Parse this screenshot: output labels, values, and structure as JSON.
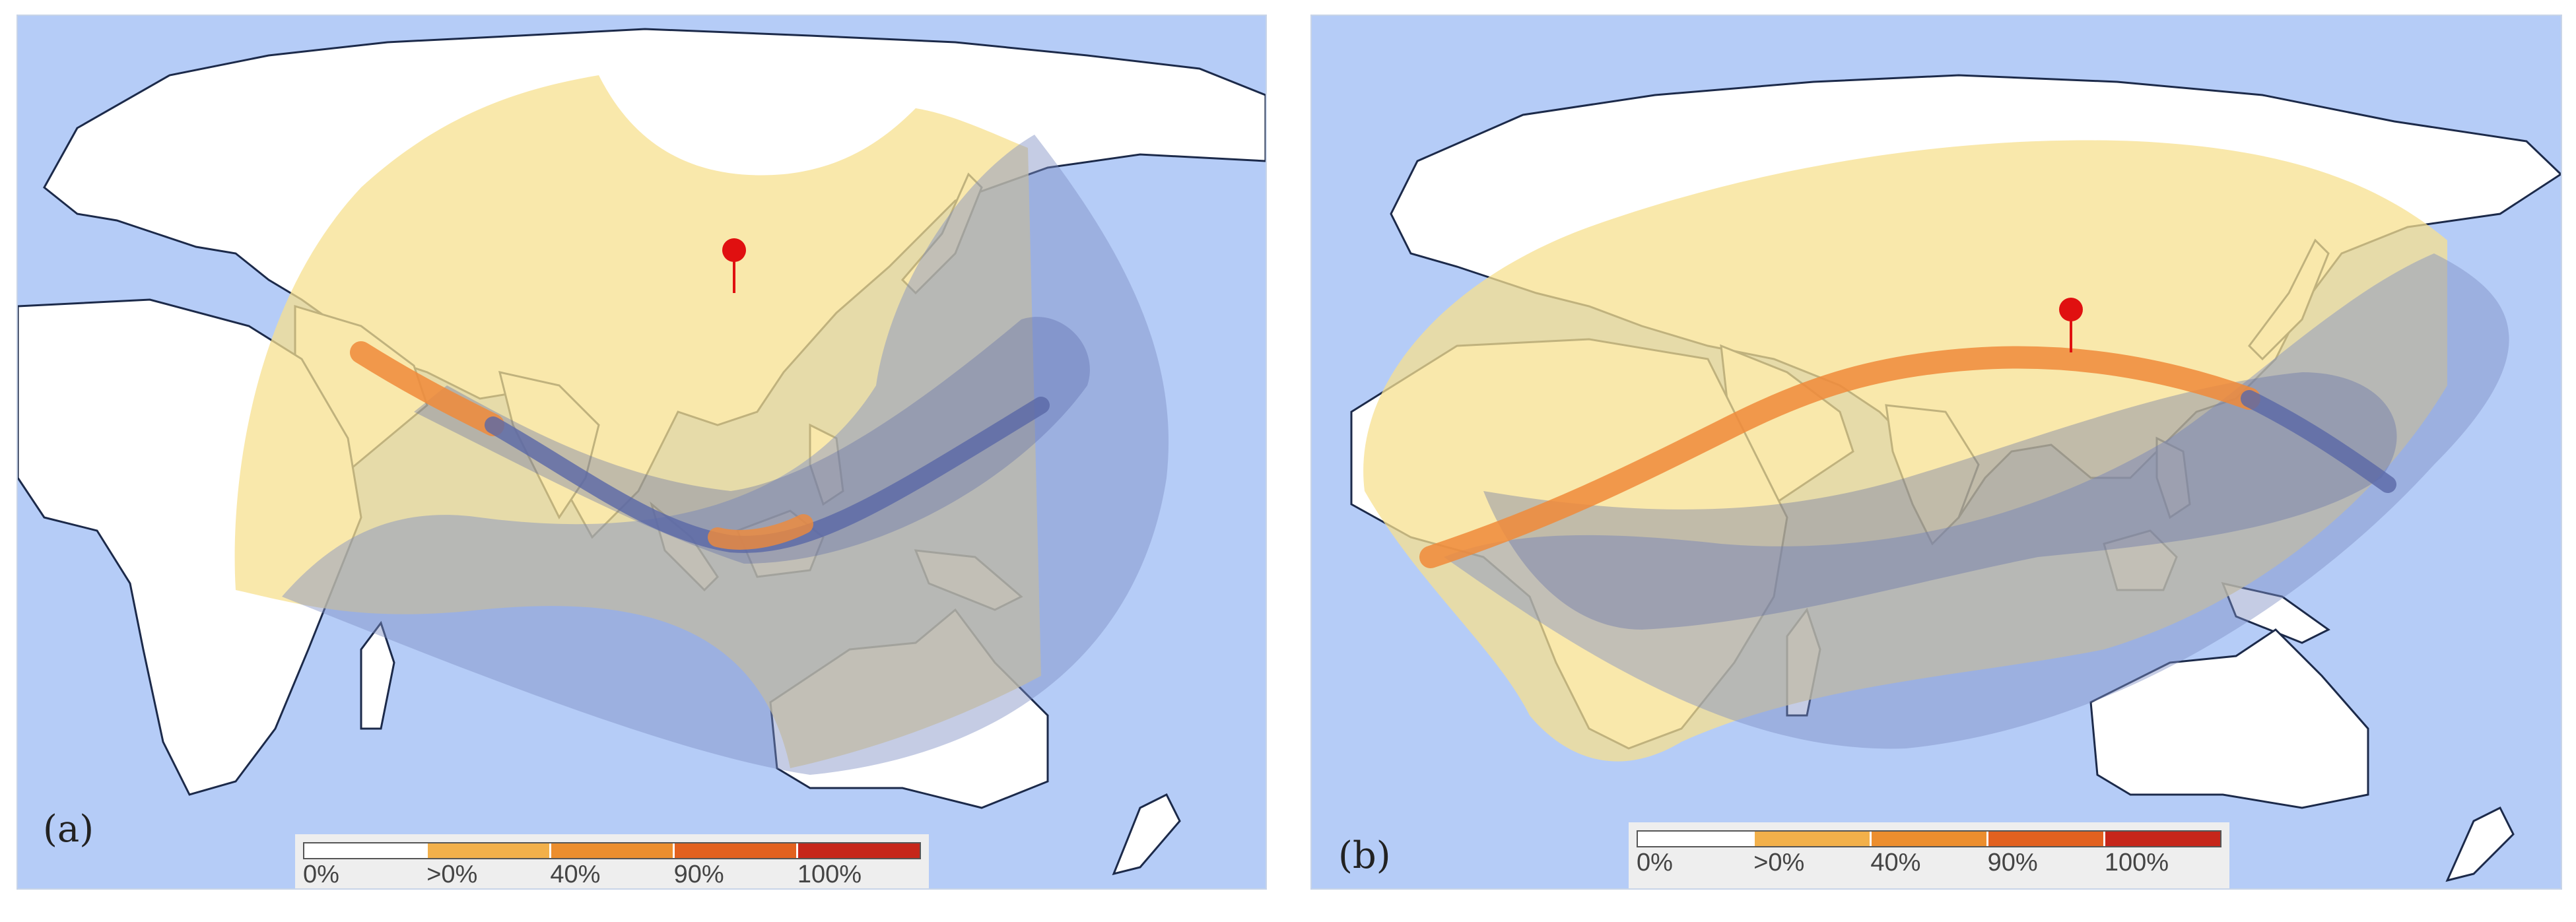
{
  "panels": [
    {
      "label": "(a)",
      "legend": [
        "0%",
        ">0%",
        "40%",
        "90%",
        "100%"
      ]
    },
    {
      "label": "(b)",
      "legend": [
        "0%",
        ">0%",
        "40%",
        "90%",
        "100%"
      ]
    }
  ],
  "legend_colors": {
    "none": "#ffffff",
    "partial": "#f2b04a",
    "over_40": "#ec8e2e",
    "over_90": "#e2611f",
    "total": "#c6261a"
  },
  "map_colors": {
    "ocean": "#b5ccf7",
    "land": "#ffffff",
    "partial_eclipse_zone": "#f7e08f",
    "night_side_shading": "#7e8fc4",
    "central_path_day": "#f08a3a",
    "central_path_night": "#5a68a6",
    "observer_marker": "#e01010"
  },
  "icons": {
    "observer_marker": "map-pin-icon"
  }
}
